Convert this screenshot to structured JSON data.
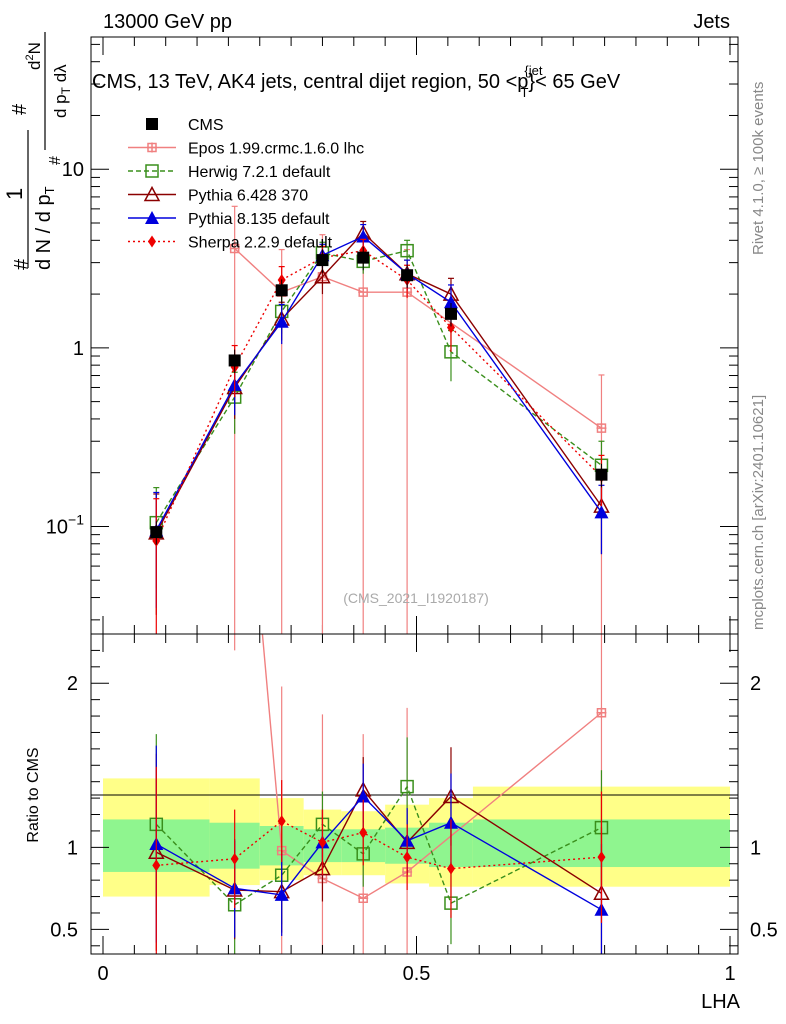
{
  "header": {
    "energy": "13000 GeV pp",
    "category": "Jets",
    "right_label_top": "Rivet 4.1.0, ≥ 100k events",
    "right_label_bottom": "mcplots.cern.ch [arXiv:2401.10621]"
  },
  "chart_data": {
    "type": "line",
    "title": "CMS, 13 TeV, AK4 jets, central dijet region, 50 < p_T^{jet} < 65 GeV",
    "title_parts": {
      "pre": "CMS, 13 TeV, AK4 jets, central dijet region, 50 <p",
      "sup": "{jet",
      "sub": "T",
      "post": "}< 65 GeV"
    },
    "watermark": "(CMS_2021_I1920187)",
    "xlabel": "LHA",
    "ylabel_main": "1/dN/dp_T  d^2N/dp_T dλ",
    "ylabel_ratio": "Ratio to CMS",
    "xlim": [
      0,
      1
    ],
    "ylim_main": [
      0.025,
      55
    ],
    "ylim_ratio": [
      0.35,
      2.3
    ],
    "y_scale_main": "log",
    "x_ticks": [
      "0",
      "0.5",
      "1"
    ],
    "x_tick_values": [
      0,
      0.5,
      1
    ],
    "y_ticks_main": [
      "10^-1",
      "1",
      "10"
    ],
    "y_tick_values_main": [
      0.1,
      1,
      10
    ],
    "y_ticks_ratio": [
      "0.5",
      "1",
      "2"
    ],
    "y_tick_values_ratio": [
      0.5,
      1,
      2
    ],
    "bins": [
      {
        "lo": 0.0,
        "hi": 0.17
      },
      {
        "lo": 0.17,
        "hi": 0.25
      },
      {
        "lo": 0.25,
        "hi": 0.32
      },
      {
        "lo": 0.32,
        "hi": 0.38
      },
      {
        "lo": 0.38,
        "hi": 0.45
      },
      {
        "lo": 0.45,
        "hi": 0.52
      },
      {
        "lo": 0.52,
        "hi": 0.59
      },
      {
        "lo": 0.59,
        "hi": 1.0
      }
    ],
    "x": [
      0.085,
      0.21,
      0.285,
      0.35,
      0.415,
      0.485,
      0.555,
      0.795
    ],
    "cms": {
      "name": "CMS",
      "values": [
        0.093,
        0.85,
        2.1,
        3.1,
        3.2,
        2.55,
        1.55,
        0.195
      ],
      "band_inner": [
        [
          0.85,
          1.17
        ],
        [
          0.87,
          1.15
        ],
        [
          0.89,
          1.13
        ],
        [
          0.91,
          1.11
        ],
        [
          0.91,
          1.11
        ],
        [
          0.9,
          1.12
        ],
        [
          0.88,
          1.15
        ],
        [
          0.88,
          1.17
        ]
      ],
      "band_outer": [
        [
          0.7,
          1.42
        ],
        [
          0.77,
          1.42
        ],
        [
          0.8,
          1.3
        ],
        [
          0.83,
          1.23
        ],
        [
          0.83,
          1.22
        ],
        [
          0.78,
          1.26
        ],
        [
          0.76,
          1.3
        ],
        [
          0.76,
          1.37
        ]
      ]
    },
    "series": [
      {
        "name": "Epos 1.99.crmc.1.6.0 lhc",
        "color": "#f08080",
        "dash": "",
        "marker": "cross",
        "values": [
          null,
          3.6,
          2.05,
          2.5,
          2.05,
          2.05,
          null,
          0.355
        ],
        "err_lo": [
          0,
          3.6,
          2.05,
          2.5,
          2.05,
          2.05,
          0,
          0.355
        ],
        "err_hi": [
          0,
          2.6,
          1.5,
          1.8,
          1.5,
          1.5,
          0,
          0.35
        ],
        "ratio": [
          null,
          4.2,
          0.98,
          0.81,
          0.69,
          0.85,
          null,
          1.82
        ],
        "ratio_err": [
          0,
          2.0,
          1.0,
          1.0,
          1.0,
          1.0,
          0,
          1.2
        ]
      },
      {
        "name": "Herwig 7.2.1 default",
        "color": "#3a8f1c",
        "dash": "5,3",
        "marker": "square-open",
        "values": [
          0.105,
          0.53,
          1.6,
          3.4,
          3.05,
          3.5,
          0.95,
          0.22
        ],
        "err_lo": [
          0.06,
          0.2,
          0.4,
          0.5,
          0.45,
          0.5,
          0.3,
          0.08
        ],
        "err_hi": [
          0.06,
          0.2,
          0.4,
          0.5,
          0.45,
          0.5,
          0.3,
          0.08
        ],
        "ratio": [
          1.14,
          0.65,
          0.83,
          1.14,
          0.96,
          1.37,
          0.66,
          1.12
        ],
        "ratio_err": [
          0.55,
          0.3,
          0.3,
          0.2,
          0.2,
          0.3,
          0.25,
          0.35
        ]
      },
      {
        "name": "Pythia 6.428 370",
        "color": "#8b0000",
        "dash": "",
        "marker": "triangle-open",
        "values": [
          0.092,
          0.6,
          1.45,
          2.5,
          4.4,
          2.6,
          2.0,
          0.13
        ],
        "err_lo": [
          0.06,
          0.2,
          0.35,
          0.5,
          0.7,
          0.5,
          0.45,
          0.06
        ],
        "err_hi": [
          0.06,
          0.2,
          0.35,
          0.5,
          0.7,
          0.5,
          0.45,
          0.06
        ],
        "ratio": [
          0.97,
          0.74,
          0.73,
          0.87,
          1.35,
          1.03,
          1.31,
          0.72
        ],
        "ratio_err": [
          0.6,
          0.3,
          0.25,
          0.2,
          0.2,
          0.2,
          0.3,
          0.4
        ]
      },
      {
        "name": "Pythia 8.135 default",
        "color": "#0000dd",
        "dash": "",
        "marker": "triangle",
        "values": [
          0.095,
          0.62,
          1.4,
          3.3,
          4.2,
          2.6,
          1.8,
          0.12
        ],
        "err_lo": [
          0.06,
          0.2,
          0.35,
          0.5,
          0.7,
          0.5,
          0.45,
          0.05
        ],
        "err_hi": [
          0.06,
          0.2,
          0.35,
          0.5,
          0.7,
          0.5,
          0.45,
          0.05
        ],
        "ratio": [
          1.02,
          0.75,
          0.71,
          1.03,
          1.31,
          1.04,
          1.15,
          0.62
        ],
        "ratio_err": [
          0.6,
          0.3,
          0.25,
          0.2,
          0.2,
          0.2,
          0.3,
          0.4
        ]
      },
      {
        "name": "Sherpa 2.2.9 default",
        "color": "#ee0000",
        "dash": "2,3",
        "marker": "diamond",
        "values": [
          0.083,
          0.78,
          2.4,
          3.2,
          3.5,
          2.4,
          1.3,
          0.19
        ],
        "err_lo": [
          0.06,
          0.25,
          0.45,
          0.5,
          0.55,
          0.5,
          0.35,
          0.06
        ],
        "err_hi": [
          0.06,
          0.25,
          0.45,
          0.5,
          0.55,
          0.5,
          0.35,
          0.06
        ],
        "ratio": [
          0.89,
          0.93,
          1.16,
          1.03,
          1.09,
          0.94,
          0.87,
          0.94
        ],
        "ratio_err": [
          0.6,
          0.3,
          0.25,
          0.2,
          0.2,
          0.2,
          0.3,
          0.4
        ]
      }
    ]
  }
}
